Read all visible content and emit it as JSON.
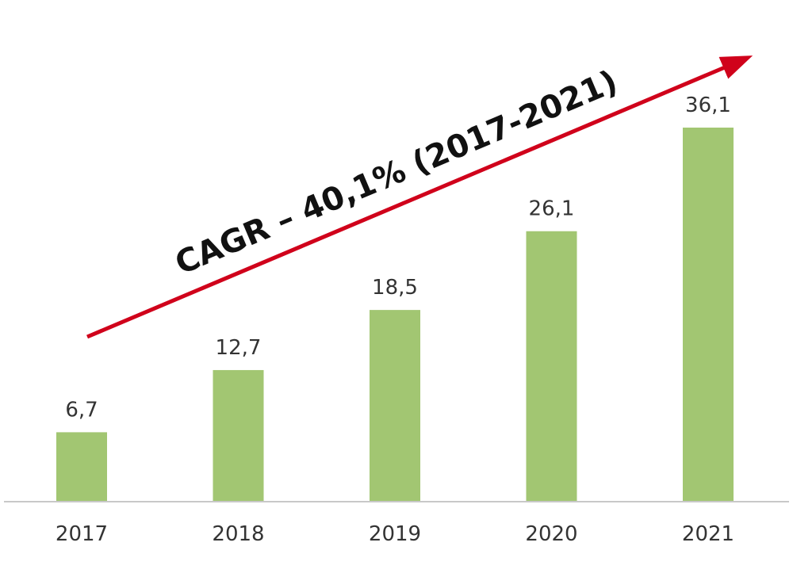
{
  "chart_data": {
    "type": "bar",
    "categories": [
      "2017",
      "2018",
      "2019",
      "2020",
      "2021"
    ],
    "values": [
      6.7,
      12.7,
      18.5,
      26.1,
      36.1
    ],
    "value_labels": [
      "6,7",
      "12,7",
      "18,5",
      "26,1",
      "36,1"
    ],
    "title": "",
    "xlabel": "",
    "ylabel": "",
    "ylim": [
      0,
      36.1
    ],
    "grid": false,
    "legend": "none",
    "annotation": "CAGR – 40,1% (2017-2021)",
    "colors": {
      "bar": "#a2c672",
      "arrow": "#d0021b",
      "axis": "#c8c8c8"
    }
  }
}
